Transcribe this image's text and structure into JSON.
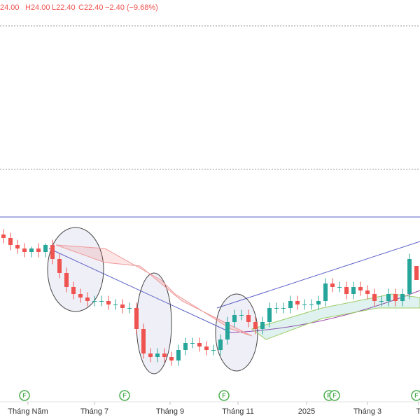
{
  "header": {
    "open": "24.00",
    "high": "H24.00",
    "low": "L22.40",
    "close": "C22.40",
    "change": "−2.40 (−9.68%)"
  },
  "markers": [
    "F",
    "F",
    "F",
    "F",
    "F",
    "F"
  ],
  "chart_data": {
    "type": "candlestick",
    "ylim": [
      8.8,
      54.4
    ],
    "xticks": [
      {
        "value": 3.5,
        "label": "Tháng Năm"
      },
      {
        "value": 13,
        "label": "Tháng 7"
      },
      {
        "value": 23.8,
        "label": "Tháng 9"
      },
      {
        "value": 33.5,
        "label": "Tháng 11"
      },
      {
        "value": 43.3,
        "label": "2025"
      },
      {
        "value": 52,
        "label": "Tháng 3"
      },
      {
        "value": 59.3,
        "label": "T"
      }
    ],
    "up_color": "#26a69a",
    "down_color": "#ef5350",
    "open": [
      27.6,
      27.2,
      26.4,
      26.0,
      25.6,
      26.0,
      25.6,
      26.4,
      24.8,
      23.2,
      21.6,
      20.8,
      20.4,
      20.0,
      20.0,
      20.0,
      19.6,
      19.6,
      19.2,
      19.2,
      16.8,
      14.0,
      13.6,
      14.0,
      13.6,
      13.2,
      14.4,
      15.2,
      15.2,
      14.8,
      14.4,
      14.4,
      15.6,
      17.6,
      18.4,
      18.4,
      17.6,
      16.8,
      17.6,
      19.2,
      19.2,
      19.2,
      20.0,
      19.6,
      19.6,
      19.6,
      20.0,
      22.0,
      21.6,
      21.6,
      20.8,
      21.6,
      21.2,
      20.8,
      20.0,
      20.0,
      20.8,
      20.0,
      20.8,
      24.0
    ],
    "high": [
      28.2,
      27.8,
      27.0,
      26.6,
      26.2,
      26.6,
      26.6,
      27.0,
      25.4,
      23.8,
      22.2,
      21.4,
      21.0,
      20.6,
      20.6,
      20.6,
      20.2,
      20.2,
      19.8,
      19.8,
      17.4,
      14.6,
      14.6,
      14.6,
      14.2,
      15.0,
      15.8,
      15.8,
      15.8,
      15.4,
      15.0,
      16.2,
      18.2,
      19.0,
      19.0,
      19.0,
      18.2,
      18.2,
      19.8,
      19.8,
      19.8,
      20.6,
      20.6,
      20.2,
      20.2,
      20.6,
      22.6,
      22.6,
      22.2,
      22.2,
      22.2,
      22.2,
      21.8,
      21.4,
      20.6,
      21.4,
      21.4,
      21.4,
      25.4,
      24.0
    ],
    "low": [
      26.6,
      25.8,
      25.4,
      25.0,
      25.0,
      25.0,
      25.0,
      24.2,
      22.6,
      21.0,
      20.2,
      19.8,
      19.4,
      19.4,
      19.4,
      19.0,
      19.0,
      18.6,
      18.6,
      16.2,
      13.4,
      13.0,
      13.0,
      13.0,
      12.6,
      12.6,
      13.8,
      14.6,
      14.2,
      13.8,
      13.8,
      13.8,
      15.0,
      17.0,
      17.8,
      17.0,
      16.2,
      16.2,
      17.0,
      18.6,
      18.6,
      18.6,
      19.0,
      19.0,
      19.0,
      19.0,
      19.4,
      21.0,
      21.0,
      20.2,
      20.2,
      20.6,
      20.2,
      19.4,
      19.4,
      19.4,
      19.4,
      19.4,
      20.2,
      22.4
    ],
    "close": [
      27.2,
      26.4,
      26.0,
      25.6,
      26.0,
      25.6,
      26.4,
      24.8,
      23.2,
      21.6,
      20.8,
      20.4,
      20.0,
      20.0,
      20.0,
      19.6,
      19.6,
      19.2,
      19.2,
      16.8,
      14.0,
      13.6,
      14.0,
      13.6,
      13.2,
      14.4,
      15.2,
      15.2,
      14.8,
      14.4,
      14.4,
      15.6,
      17.6,
      18.4,
      18.4,
      17.6,
      16.8,
      17.6,
      19.2,
      19.2,
      19.2,
      20.0,
      19.6,
      19.6,
      19.6,
      20.0,
      22.0,
      21.6,
      21.6,
      20.8,
      21.6,
      21.2,
      20.8,
      20.0,
      20.0,
      20.8,
      20.0,
      20.8,
      24.8,
      22.4
    ]
  }
}
